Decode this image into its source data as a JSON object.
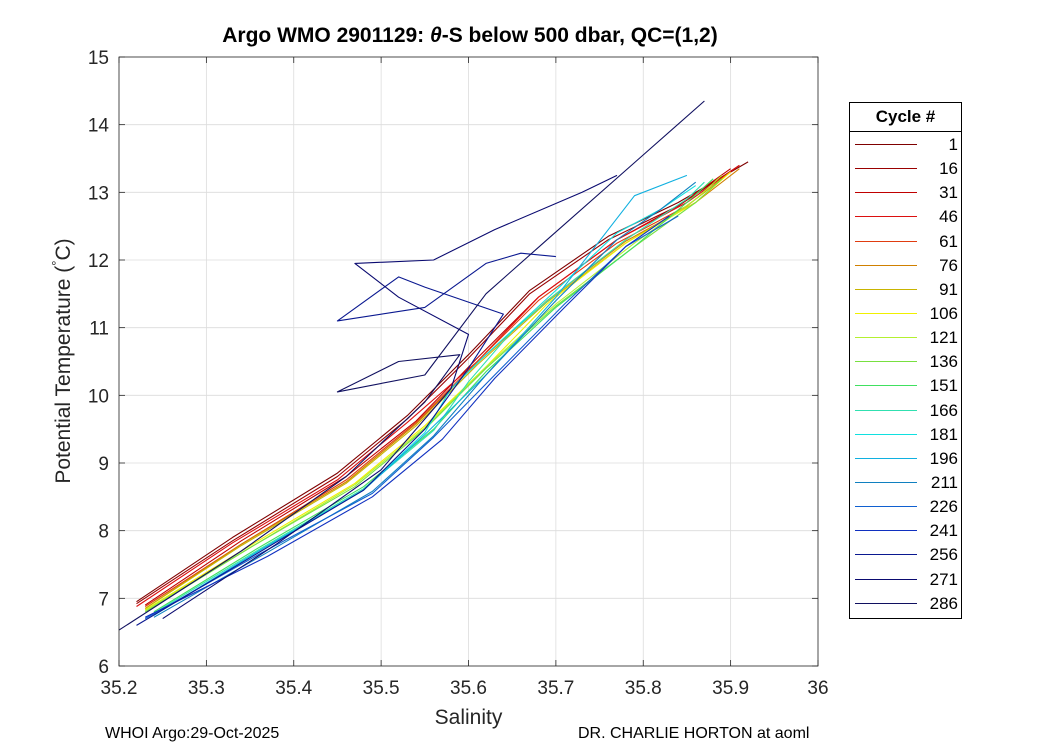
{
  "title": {
    "prefix": "Argo WMO 2901129: ",
    "theta": "θ",
    "suffix": "-S below 500 dbar,  QC=(1,2)"
  },
  "footer": {
    "left": "WHOI Argo:29-Oct-2025",
    "right": "DR. CHARLIE HORTON at aoml"
  },
  "legend": {
    "title": "Cycle #",
    "items": [
      {
        "label": "1",
        "color": "#7f0000"
      },
      {
        "label": "16",
        "color": "#9a0000"
      },
      {
        "label": "31",
        "color": "#c00000"
      },
      {
        "label": "46",
        "color": "#dc1010"
      },
      {
        "label": "61",
        "color": "#e03c10"
      },
      {
        "label": "76",
        "color": "#d08000"
      },
      {
        "label": "91",
        "color": "#c8b400"
      },
      {
        "label": "106",
        "color": "#f0f000"
      },
      {
        "label": "121",
        "color": "#b4f030"
      },
      {
        "label": "136",
        "color": "#78e040"
      },
      {
        "label": "151",
        "color": "#40e060"
      },
      {
        "label": "166",
        "color": "#30e0b0"
      },
      {
        "label": "181",
        "color": "#10e0e0"
      },
      {
        "label": "196",
        "color": "#10b0e0"
      },
      {
        "label": "211",
        "color": "#1080c0"
      },
      {
        "label": "226",
        "color": "#1060d0"
      },
      {
        "label": "241",
        "color": "#1030c0"
      },
      {
        "label": "256",
        "color": "#0a1890"
      },
      {
        "label": "271",
        "color": "#0a0a70"
      },
      {
        "label": "286",
        "color": "#101060"
      }
    ]
  },
  "chart_data": {
    "type": "line",
    "xlabel": "Salinity",
    "ylabel_main": "Potential Temperature (",
    "ylabel_deg": "°",
    "ylabel_end": "C)",
    "xlim": [
      35.2,
      36.0
    ],
    "ylim": [
      6,
      15
    ],
    "xticks": [
      35.2,
      35.3,
      35.4,
      35.5,
      35.6,
      35.7,
      35.8,
      35.9,
      36.0
    ],
    "xtick_labels": [
      "35.2",
      "35.3",
      "35.4",
      "35.5",
      "35.6",
      "35.7",
      "35.8",
      "35.9",
      "36"
    ],
    "yticks": [
      6,
      7,
      8,
      9,
      10,
      11,
      12,
      13,
      14,
      15
    ],
    "ytick_labels": [
      "6",
      "7",
      "8",
      "9",
      "10",
      "11",
      "12",
      "13",
      "14",
      "15"
    ],
    "grid": true,
    "series": [
      {
        "name": "1",
        "color": "#7f0000",
        "x": [
          35.22,
          35.33,
          35.45,
          35.53,
          35.6,
          35.67,
          35.76,
          35.84,
          35.92
        ],
        "y": [
          6.95,
          7.9,
          8.85,
          9.7,
          10.6,
          11.55,
          12.35,
          12.85,
          13.45
        ]
      },
      {
        "name": "16",
        "color": "#9a0000",
        "x": [
          35.22,
          35.33,
          35.45,
          35.53,
          35.6,
          35.67,
          35.76,
          35.84,
          35.91
        ],
        "y": [
          6.92,
          7.85,
          8.8,
          9.65,
          10.55,
          11.5,
          12.3,
          12.8,
          13.4
        ]
      },
      {
        "name": "31",
        "color": "#c00000",
        "x": [
          35.23,
          35.34,
          35.46,
          35.54,
          35.61,
          35.68,
          35.77,
          35.84,
          35.9
        ],
        "y": [
          6.9,
          7.85,
          8.8,
          9.62,
          10.55,
          11.45,
          12.3,
          12.8,
          13.35
        ]
      },
      {
        "name": "46",
        "color": "#dc1010",
        "x": [
          35.22,
          35.33,
          35.45,
          35.53,
          35.61,
          35.68,
          35.77,
          35.85,
          35.91
        ],
        "y": [
          6.88,
          7.82,
          8.75,
          9.6,
          10.5,
          11.45,
          12.3,
          12.85,
          13.4
        ]
      },
      {
        "name": "61",
        "color": "#e03c10",
        "x": [
          35.23,
          35.34,
          35.46,
          35.54,
          35.61,
          35.68,
          35.77,
          35.85,
          35.9
        ],
        "y": [
          6.88,
          7.8,
          8.75,
          9.6,
          10.5,
          11.4,
          12.25,
          12.8,
          13.3
        ]
      },
      {
        "name": "76",
        "color": "#d08000",
        "x": [
          35.23,
          35.34,
          35.46,
          35.54,
          35.61,
          35.69,
          35.78,
          35.86,
          35.91
        ],
        "y": [
          6.85,
          7.8,
          8.72,
          9.58,
          10.48,
          11.4,
          12.28,
          12.85,
          13.35
        ]
      },
      {
        "name": "91",
        "color": "#c8b400",
        "x": [
          35.23,
          35.34,
          35.46,
          35.54,
          35.61,
          35.69,
          35.78,
          35.85,
          35.9
        ],
        "y": [
          6.85,
          7.78,
          8.7,
          9.55,
          10.45,
          11.38,
          12.25,
          12.8,
          13.3
        ]
      },
      {
        "name": "106",
        "color": "#f0f000",
        "x": [
          35.23,
          35.35,
          35.47,
          35.55,
          35.62,
          35.69,
          35.78,
          35.86,
          35.9
        ],
        "y": [
          6.83,
          7.78,
          8.7,
          9.55,
          10.42,
          11.35,
          12.25,
          12.85,
          13.3
        ]
      },
      {
        "name": "121",
        "color": "#b4f030",
        "x": [
          35.23,
          35.35,
          35.47,
          35.55,
          35.62,
          35.7,
          35.79,
          35.86,
          35.89
        ],
        "y": [
          6.82,
          7.75,
          8.68,
          9.52,
          10.42,
          11.35,
          12.25,
          12.9,
          13.25
        ]
      },
      {
        "name": "136",
        "color": "#78e040",
        "x": [
          35.23,
          35.35,
          35.47,
          35.55,
          35.62,
          35.7,
          35.79,
          35.86,
          35.89
        ],
        "y": [
          6.8,
          7.75,
          8.65,
          9.5,
          10.4,
          11.32,
          12.2,
          12.85,
          13.2
        ]
      },
      {
        "name": "151",
        "color": "#40e060",
        "x": [
          35.24,
          35.36,
          35.48,
          35.56,
          35.62,
          35.7,
          35.79,
          35.85,
          35.88
        ],
        "y": [
          6.8,
          7.75,
          8.65,
          9.5,
          10.35,
          11.3,
          12.2,
          12.85,
          13.2
        ]
      },
      {
        "name": "166",
        "color": "#30e0b0",
        "x": [
          35.24,
          35.36,
          35.48,
          35.56,
          35.6,
          35.65,
          35.7,
          35.78,
          35.85,
          35.87
        ],
        "y": [
          6.78,
          7.72,
          8.62,
          9.48,
          10.2,
          10.95,
          11.5,
          12.3,
          12.9,
          13.15
        ]
      },
      {
        "name": "181",
        "color": "#10e0e0",
        "x": [
          35.24,
          35.36,
          35.48,
          35.55,
          35.58,
          35.62,
          35.7,
          35.77,
          35.82,
          35.86
        ],
        "y": [
          6.75,
          7.7,
          8.6,
          9.45,
          10.1,
          10.6,
          11.55,
          12.4,
          12.75,
          13.1
        ]
      },
      {
        "name": "196",
        "color": "#10b0e0",
        "x": [
          35.24,
          35.36,
          35.48,
          35.55,
          35.62,
          35.7,
          35.76,
          35.79,
          35.85
        ],
        "y": [
          6.75,
          7.7,
          8.6,
          9.42,
          10.3,
          11.45,
          12.45,
          12.95,
          13.25
        ]
      },
      {
        "name": "211",
        "color": "#1080c0",
        "x": [
          35.24,
          35.37,
          35.49,
          35.56,
          35.62,
          35.7,
          35.77,
          35.82,
          35.86
        ],
        "y": [
          6.72,
          7.68,
          8.58,
          9.4,
          10.3,
          11.4,
          12.3,
          12.75,
          13.15
        ]
      },
      {
        "name": "226",
        "color": "#1060d0",
        "x": [
          35.23,
          35.36,
          35.49,
          35.56,
          35.63,
          35.71,
          35.78,
          35.84
        ],
        "y": [
          6.7,
          7.65,
          8.55,
          9.38,
          10.3,
          11.35,
          12.2,
          12.65
        ]
      },
      {
        "name": "241",
        "color": "#1030c0",
        "x": [
          35.23,
          35.37,
          35.49,
          35.57,
          35.63,
          35.71,
          35.78,
          35.83
        ],
        "y": [
          6.72,
          7.62,
          8.5,
          9.35,
          10.25,
          11.3,
          12.2,
          12.65
        ]
      },
      {
        "name": "256",
        "color": "#0a1890",
        "x": [
          35.22,
          35.35,
          35.48,
          35.55,
          35.6,
          35.64,
          35.55,
          35.52,
          35.45,
          35.55,
          35.62,
          35.66,
          35.7
        ],
        "y": [
          6.6,
          7.6,
          8.6,
          9.5,
          10.4,
          11.2,
          11.6,
          11.75,
          11.1,
          11.3,
          11.95,
          12.1,
          12.05
        ]
      },
      {
        "name": "271",
        "color": "#0a0a70",
        "x": [
          35.25,
          35.38,
          35.5,
          35.58,
          35.6,
          35.52,
          35.47,
          35.56,
          35.63,
          35.73,
          35.77
        ],
        "y": [
          6.7,
          7.8,
          8.9,
          10.1,
          10.9,
          11.45,
          11.95,
          12.0,
          12.45,
          13.0,
          13.25
        ]
      },
      {
        "name": "286",
        "color": "#101060",
        "x": [
          35.2,
          35.34,
          35.46,
          35.55,
          35.59,
          35.52,
          35.45,
          35.55,
          35.62,
          35.69,
          35.87
        ],
        "y": [
          6.53,
          7.7,
          8.8,
          9.9,
          10.6,
          10.5,
          10.05,
          10.3,
          11.5,
          12.3,
          14.35
        ]
      }
    ]
  }
}
